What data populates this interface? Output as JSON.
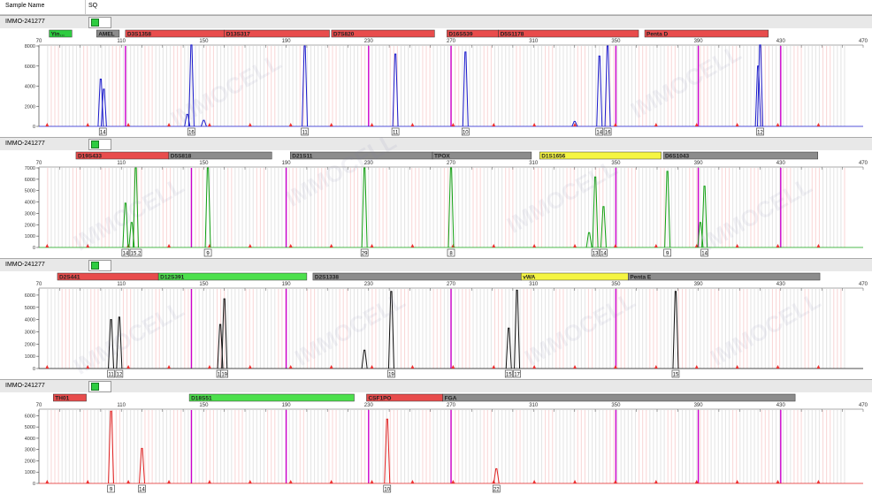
{
  "header": {
    "sample_name_label": "Sample Name",
    "sq_label": "SQ"
  },
  "x_ticks": [
    70,
    110,
    150,
    190,
    230,
    270,
    310,
    350,
    390,
    430,
    470
  ],
  "x_range": [
    70,
    470
  ],
  "watermark": "IMMOCELL",
  "colors": {
    "blue": "#1a1acc",
    "green": "#12a012",
    "black": "#111111",
    "red": "#e02020",
    "magenta": "#cc00cc",
    "marker_red": "#ee3030",
    "loc_red": "#e84c4c",
    "loc_green": "#4ce04c",
    "loc_gray": "#8c8c8c",
    "loc_yellow": "#f5f542"
  },
  "chart_data": [
    {
      "type": "line",
      "sample": "IMMO-241277",
      "dye": "blue",
      "ylim": [
        0,
        8000
      ],
      "y_ticks": [
        0,
        2000,
        4000,
        6000,
        8000
      ],
      "loci": [
        {
          "label": "Yin...",
          "x0": 75,
          "x1": 86,
          "color": "#2ecc40"
        },
        {
          "label": "AMEL",
          "x0": 98,
          "x1": 109,
          "color": "#8c8c8c"
        },
        {
          "label": "D3S1358",
          "x0": 112,
          "x1": 160,
          "color": "#e84c4c"
        },
        {
          "label": "D13S317",
          "x0": 160,
          "x1": 211,
          "color": "#e84c4c"
        },
        {
          "label": "D7S820",
          "x0": 212,
          "x1": 262,
          "color": "#e84c4c"
        },
        {
          "label": "D16S539",
          "x0": 268,
          "x1": 293,
          "color": "#e84c4c"
        },
        {
          "label": "D5S1178",
          "x0": 293,
          "x1": 361,
          "color": "#e84c4c"
        },
        {
          "label": "Penta D",
          "x0": 364,
          "x1": 424,
          "color": "#e84c4c"
        }
      ],
      "magenta_lines": [
        112,
        230,
        270,
        350,
        390,
        430
      ],
      "peaks": [
        {
          "x": 100,
          "height": 4700
        },
        {
          "x": 101.5,
          "height": 3700
        },
        {
          "x": 144,
          "height": 8100
        },
        {
          "x": 142,
          "height": 1200
        },
        {
          "x": 150,
          "height": 600
        },
        {
          "x": 199,
          "height": 8000
        },
        {
          "x": 243,
          "height": 7200
        },
        {
          "x": 277,
          "height": 7400
        },
        {
          "x": 342,
          "height": 7000
        },
        {
          "x": 346,
          "height": 8000
        },
        {
          "x": 330,
          "height": 500
        },
        {
          "x": 420,
          "height": 8100
        },
        {
          "x": 419,
          "height": 6000
        }
      ],
      "allele_labels": [
        {
          "x": 101,
          "text": "14"
        },
        {
          "x": 144,
          "text": "16"
        },
        {
          "x": 199,
          "text": "11"
        },
        {
          "x": 243,
          "text": "11"
        },
        {
          "x": 277,
          "text": "10"
        },
        {
          "x": 342,
          "text": "14"
        },
        {
          "x": 346,
          "text": "16"
        },
        {
          "x": 420,
          "text": "12"
        }
      ]
    },
    {
      "type": "line",
      "sample": "IMMO-241277",
      "dye": "green",
      "ylim": [
        0,
        7000
      ],
      "y_ticks": [
        0,
        1000,
        2000,
        3000,
        4000,
        5000,
        6000,
        7000
      ],
      "loci": [
        {
          "label": "D19S433",
          "x0": 88,
          "x1": 133,
          "color": "#e84c4c"
        },
        {
          "label": "D5S818",
          "x0": 133,
          "x1": 183,
          "color": "#8c8c8c"
        },
        {
          "label": "D21S11",
          "x0": 192,
          "x1": 261,
          "color": "#8c8c8c"
        },
        {
          "label": "TPOX",
          "x0": 261,
          "x1": 309,
          "color": "#8c8c8c"
        },
        {
          "label": "D1S1656",
          "x0": 313,
          "x1": 372,
          "color": "#f5f542"
        },
        {
          "label": "D6S1043",
          "x0": 373,
          "x1": 448,
          "color": "#8c8c8c"
        }
      ],
      "magenta_lines": [
        144,
        190,
        350,
        390,
        430
      ],
      "peaks": [
        {
          "x": 112,
          "height": 3900
        },
        {
          "x": 117,
          "height": 7000
        },
        {
          "x": 115,
          "height": 2200
        },
        {
          "x": 152,
          "height": 7000
        },
        {
          "x": 228,
          "height": 7000
        },
        {
          "x": 270,
          "height": 7000
        },
        {
          "x": 340,
          "height": 6200
        },
        {
          "x": 344,
          "height": 3600
        },
        {
          "x": 337,
          "height": 1300
        },
        {
          "x": 375,
          "height": 6700
        },
        {
          "x": 393,
          "height": 5400
        },
        {
          "x": 391,
          "height": 2200
        }
      ],
      "allele_labels": [
        {
          "x": 112,
          "text": "14"
        },
        {
          "x": 117,
          "text": "15.2"
        },
        {
          "x": 152,
          "text": "9"
        },
        {
          "x": 228,
          "text": "29"
        },
        {
          "x": 270,
          "text": "8"
        },
        {
          "x": 340,
          "text": "13"
        },
        {
          "x": 344,
          "text": "14"
        },
        {
          "x": 375,
          "text": "9"
        },
        {
          "x": 393,
          "text": "14"
        }
      ]
    },
    {
      "type": "line",
      "sample": "IMMO-241277",
      "dye": "black",
      "ylim": [
        0,
        6500
      ],
      "y_ticks": [
        0,
        1000,
        2000,
        3000,
        4000,
        5000,
        6000
      ],
      "loci": [
        {
          "label": "D2S441",
          "x0": 79,
          "x1": 128,
          "color": "#e84c4c"
        },
        {
          "label": "D12S391",
          "x0": 128,
          "x1": 200,
          "color": "#4ce04c"
        },
        {
          "label": "D2S1338",
          "x0": 203,
          "x1": 304,
          "color": "#8c8c8c"
        },
        {
          "label": "vWA",
          "x0": 304,
          "x1": 356,
          "color": "#f5f542"
        },
        {
          "label": "Penta E",
          "x0": 356,
          "x1": 449,
          "color": "#8c8c8c"
        }
      ],
      "magenta_lines": [
        144,
        190,
        270,
        350
      ],
      "peaks": [
        {
          "x": 105,
          "height": 4000
        },
        {
          "x": 109,
          "height": 4200
        },
        {
          "x": 158,
          "height": 3600
        },
        {
          "x": 160,
          "height": 5700
        },
        {
          "x": 241,
          "height": 6300
        },
        {
          "x": 298,
          "height": 3300
        },
        {
          "x": 302,
          "height": 6400
        },
        {
          "x": 379,
          "height": 6300
        },
        {
          "x": 228,
          "height": 1500
        }
      ],
      "allele_labels": [
        {
          "x": 105,
          "text": "11"
        },
        {
          "x": 109,
          "text": "12"
        },
        {
          "x": 158,
          "text": "18"
        },
        {
          "x": 160,
          "text": "19"
        },
        {
          "x": 241,
          "text": "19"
        },
        {
          "x": 298,
          "text": "15"
        },
        {
          "x": 302,
          "text": "17"
        },
        {
          "x": 379,
          "text": "15"
        }
      ]
    },
    {
      "type": "line",
      "sample": "IMMO-241277",
      "dye": "red",
      "ylim": [
        0,
        6500
      ],
      "y_ticks": [
        0,
        1000,
        2000,
        3000,
        4000,
        5000,
        6000
      ],
      "loci": [
        {
          "label": "TH01",
          "x0": 77,
          "x1": 93,
          "color": "#e84c4c"
        },
        {
          "label": "D18S51",
          "x0": 143,
          "x1": 223,
          "color": "#4ce04c"
        },
        {
          "label": "CSF1PO",
          "x0": 229,
          "x1": 266,
          "color": "#e84c4c"
        },
        {
          "label": "FGA",
          "x0": 266,
          "x1": 437,
          "color": "#8c8c8c"
        }
      ],
      "magenta_lines": [
        144,
        190,
        230,
        270,
        350,
        390,
        430
      ],
      "peaks": [
        {
          "x": 105,
          "height": 6400
        },
        {
          "x": 120,
          "height": 3100
        },
        {
          "x": 239,
          "height": 5700
        },
        {
          "x": 292,
          "height": 1300
        }
      ],
      "allele_labels": [
        {
          "x": 105,
          "text": "9"
        },
        {
          "x": 120,
          "text": "14"
        },
        {
          "x": 239,
          "text": "10"
        },
        {
          "x": 292,
          "text": "22"
        }
      ]
    }
  ]
}
